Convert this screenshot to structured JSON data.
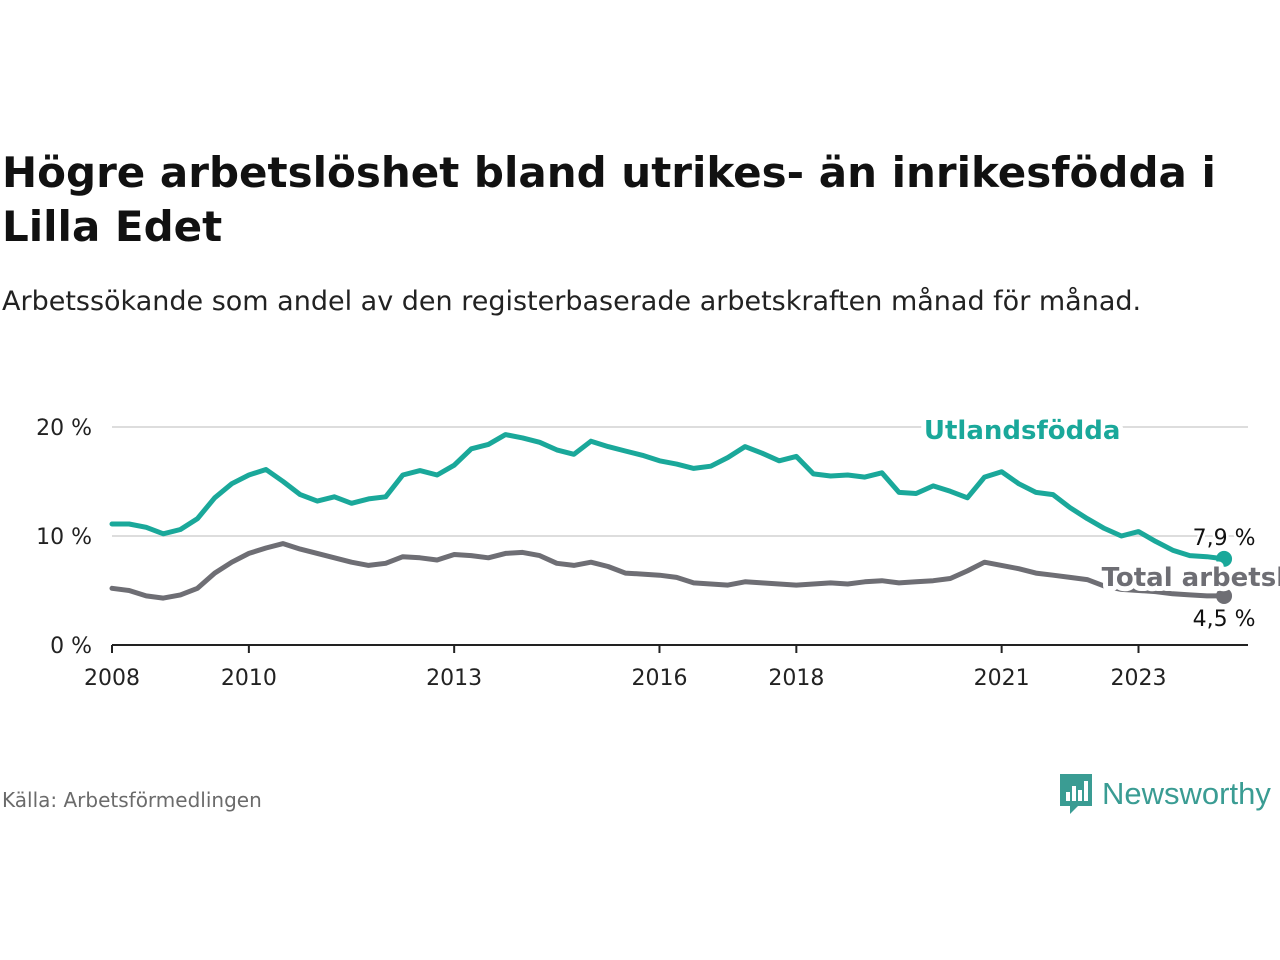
{
  "title": "Högre arbetslöshet bland utrikes- än inrikesfödda i Lilla Edet",
  "subtitle": "Arbetssökande som andel av den registerbaserade arbetskraften månad för månad.",
  "source": "Källa: Arbetsförmedlingen",
  "brand": {
    "name": "Newsworthy",
    "icon": "newsworthy-logo-icon"
  },
  "colors": {
    "foreign": "#1aa89a",
    "total": "#6e6e74",
    "grid": "#dddddd",
    "axis": "#222222"
  },
  "chart_data": {
    "type": "line",
    "title": "Högre arbetslöshet bland utrikes- än inrikesfödda i Lilla Edet",
    "xlabel": "",
    "ylabel": "",
    "xlim": [
      2008,
      2024.6
    ],
    "ylim": [
      0,
      20
    ],
    "grid": true,
    "x_ticks": [
      {
        "value": 2008,
        "label": "2008"
      },
      {
        "value": 2010,
        "label": "2010"
      },
      {
        "value": 2013,
        "label": "2013"
      },
      {
        "value": 2016,
        "label": "2016"
      },
      {
        "value": 2018,
        "label": "2018"
      },
      {
        "value": 2021,
        "label": "2021"
      },
      {
        "value": 2023,
        "label": "2023"
      }
    ],
    "y_ticks": [
      {
        "value": 0,
        "label": "0 %"
      },
      {
        "value": 10,
        "label": "10 %"
      },
      {
        "value": 20,
        "label": "20 %"
      }
    ],
    "series": [
      {
        "name": "Utlandsfödda",
        "label_pos": [
          13.3,
          18.9
        ],
        "end_label": "7,9 %",
        "points": [
          [
            2008.0,
            11.1
          ],
          [
            2008.25,
            11.1
          ],
          [
            2008.5,
            10.8
          ],
          [
            2008.75,
            10.2
          ],
          [
            2009.0,
            10.6
          ],
          [
            2009.25,
            11.6
          ],
          [
            2009.5,
            13.5
          ],
          [
            2009.75,
            14.8
          ],
          [
            2010.0,
            15.6
          ],
          [
            2010.25,
            16.1
          ],
          [
            2010.5,
            15.0
          ],
          [
            2010.75,
            13.8
          ],
          [
            2011.0,
            13.2
          ],
          [
            2011.25,
            13.6
          ],
          [
            2011.5,
            13.0
          ],
          [
            2011.75,
            13.4
          ],
          [
            2012.0,
            13.6
          ],
          [
            2012.25,
            15.6
          ],
          [
            2012.5,
            16.0
          ],
          [
            2012.75,
            15.6
          ],
          [
            2013.0,
            16.5
          ],
          [
            2013.25,
            18.0
          ],
          [
            2013.5,
            18.4
          ],
          [
            2013.75,
            19.3
          ],
          [
            2014.0,
            19.0
          ],
          [
            2014.25,
            18.6
          ],
          [
            2014.5,
            17.9
          ],
          [
            2014.75,
            17.5
          ],
          [
            2015.0,
            18.7
          ],
          [
            2015.25,
            18.2
          ],
          [
            2015.5,
            17.8
          ],
          [
            2015.75,
            17.4
          ],
          [
            2016.0,
            16.9
          ],
          [
            2016.25,
            16.6
          ],
          [
            2016.5,
            16.2
          ],
          [
            2016.75,
            16.4
          ],
          [
            2017.0,
            17.2
          ],
          [
            2017.25,
            18.2
          ],
          [
            2017.5,
            17.6
          ],
          [
            2017.75,
            16.9
          ],
          [
            2018.0,
            17.3
          ],
          [
            2018.25,
            15.7
          ],
          [
            2018.5,
            15.5
          ],
          [
            2018.75,
            15.6
          ],
          [
            2019.0,
            15.4
          ],
          [
            2019.25,
            15.8
          ],
          [
            2019.5,
            14.0
          ],
          [
            2019.75,
            13.9
          ],
          [
            2020.0,
            14.6
          ],
          [
            2020.25,
            14.1
          ],
          [
            2020.5,
            13.5
          ],
          [
            2020.75,
            15.4
          ],
          [
            2021.0,
            15.9
          ],
          [
            2021.25,
            14.8
          ],
          [
            2021.5,
            14.0
          ],
          [
            2021.75,
            13.8
          ],
          [
            2022.0,
            12.6
          ],
          [
            2022.25,
            11.6
          ],
          [
            2022.5,
            10.7
          ],
          [
            2022.75,
            10.0
          ],
          [
            2023.0,
            10.4
          ],
          [
            2023.25,
            9.5
          ],
          [
            2023.5,
            8.7
          ],
          [
            2023.75,
            8.2
          ],
          [
            2024.0,
            8.1
          ],
          [
            2024.25,
            7.9
          ]
        ]
      },
      {
        "name": "Total arbetslöshet",
        "label_pos": [
          16.4,
          5.4
        ],
        "end_label": "4,5 %",
        "points": [
          [
            2008.0,
            5.2
          ],
          [
            2008.25,
            5.0
          ],
          [
            2008.5,
            4.5
          ],
          [
            2008.75,
            4.3
          ],
          [
            2009.0,
            4.6
          ],
          [
            2009.25,
            5.2
          ],
          [
            2009.5,
            6.6
          ],
          [
            2009.75,
            7.6
          ],
          [
            2010.0,
            8.4
          ],
          [
            2010.25,
            8.9
          ],
          [
            2010.5,
            9.3
          ],
          [
            2010.75,
            8.8
          ],
          [
            2011.0,
            8.4
          ],
          [
            2011.25,
            8.0
          ],
          [
            2011.5,
            7.6
          ],
          [
            2011.75,
            7.3
          ],
          [
            2012.0,
            7.5
          ],
          [
            2012.25,
            8.1
          ],
          [
            2012.5,
            8.0
          ],
          [
            2012.75,
            7.8
          ],
          [
            2013.0,
            8.3
          ],
          [
            2013.25,
            8.2
          ],
          [
            2013.5,
            8.0
          ],
          [
            2013.75,
            8.4
          ],
          [
            2014.0,
            8.5
          ],
          [
            2014.25,
            8.2
          ],
          [
            2014.5,
            7.5
          ],
          [
            2014.75,
            7.3
          ],
          [
            2015.0,
            7.6
          ],
          [
            2015.25,
            7.2
          ],
          [
            2015.5,
            6.6
          ],
          [
            2015.75,
            6.5
          ],
          [
            2016.0,
            6.4
          ],
          [
            2016.25,
            6.2
          ],
          [
            2016.5,
            5.7
          ],
          [
            2016.75,
            5.6
          ],
          [
            2017.0,
            5.5
          ],
          [
            2017.25,
            5.8
          ],
          [
            2017.5,
            5.7
          ],
          [
            2017.75,
            5.6
          ],
          [
            2018.0,
            5.5
          ],
          [
            2018.25,
            5.6
          ],
          [
            2018.5,
            5.7
          ],
          [
            2018.75,
            5.6
          ],
          [
            2019.0,
            5.8
          ],
          [
            2019.25,
            5.9
          ],
          [
            2019.5,
            5.7
          ],
          [
            2019.75,
            5.8
          ],
          [
            2020.0,
            5.9
          ],
          [
            2020.25,
            6.1
          ],
          [
            2020.5,
            6.8
          ],
          [
            2020.75,
            7.6
          ],
          [
            2021.0,
            7.3
          ],
          [
            2021.25,
            7.0
          ],
          [
            2021.5,
            6.6
          ],
          [
            2021.75,
            6.4
          ],
          [
            2022.0,
            6.2
          ],
          [
            2022.25,
            6.0
          ],
          [
            2022.5,
            5.4
          ],
          [
            2022.75,
            5.1
          ],
          [
            2023.0,
            5.0
          ],
          [
            2023.25,
            4.9
          ],
          [
            2023.5,
            4.7
          ],
          [
            2023.75,
            4.6
          ],
          [
            2024.0,
            4.5
          ],
          [
            2024.25,
            4.5
          ]
        ]
      }
    ]
  }
}
